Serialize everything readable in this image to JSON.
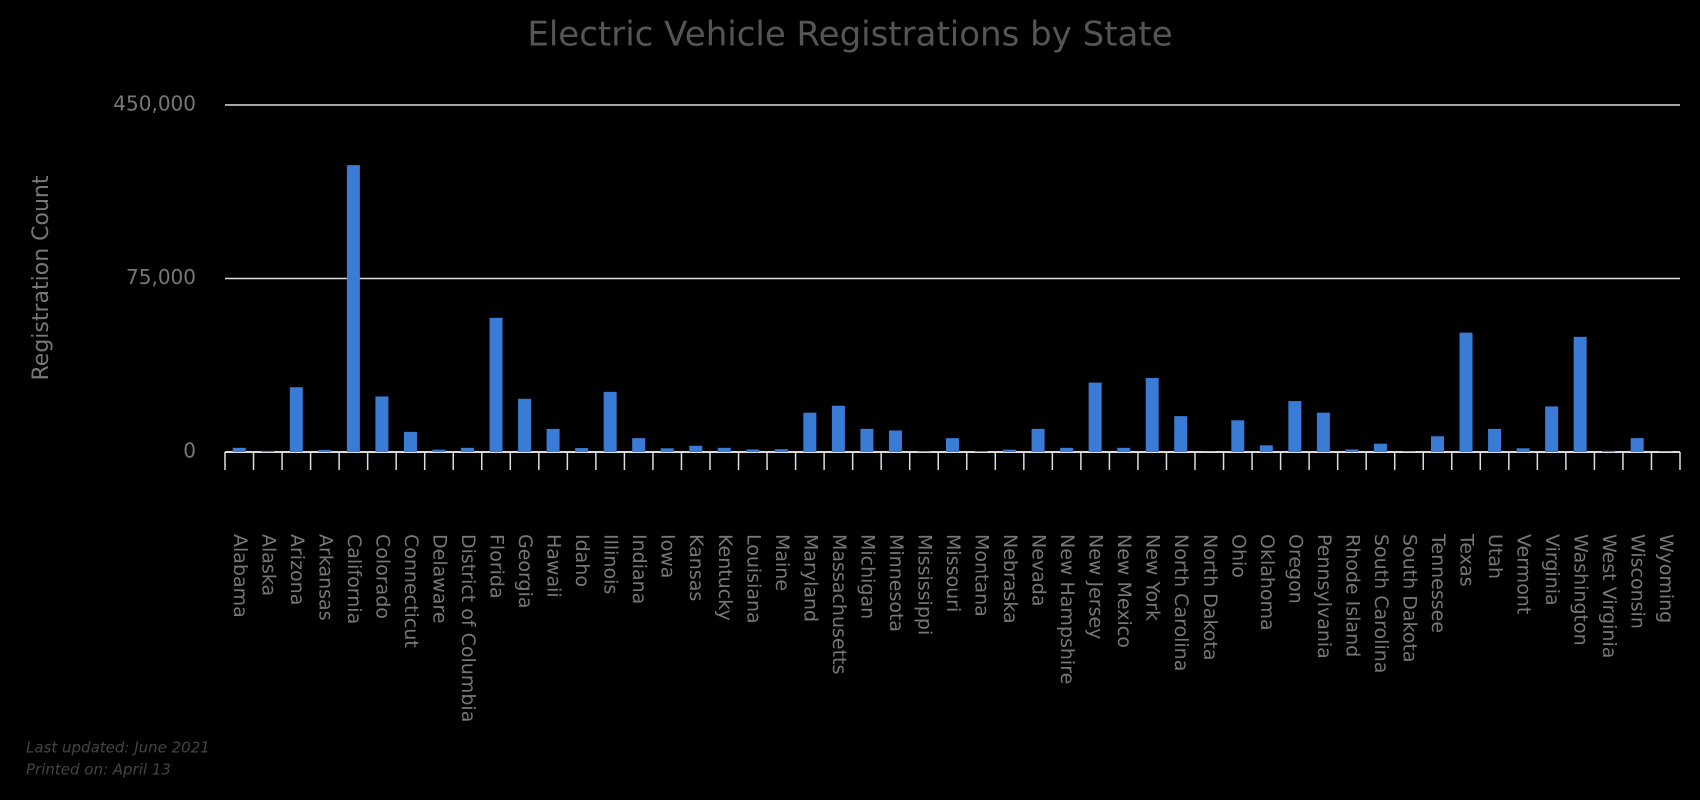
{
  "chart_data": {
    "type": "bar",
    "title": "Electric Vehicle Registrations by State",
    "y_label": "Registration Count",
    "categories": [
      "Alabama",
      "Alaska",
      "Arizona",
      "Arkansas",
      "California",
      "Colorado",
      "Connecticut",
      "Delaware",
      "District of Columbia",
      "Florida",
      "Georgia",
      "Hawaii",
      "Idaho",
      "Illinois",
      "Indiana",
      "Iowa",
      "Kansas",
      "Kentucky",
      "Louisiana",
      "Maine",
      "Maryland",
      "Massachusetts",
      "Michigan",
      "Minnesota",
      "Mississippi",
      "Missouri",
      "Montana",
      "Nebraska",
      "Nevada",
      "New Hampshire",
      "New Jersey",
      "New Mexico",
      "New York",
      "North Carolina",
      "North Dakota",
      "Ohio",
      "Oklahoma",
      "Oregon",
      "Pennsylvania",
      "Rhode Island",
      "South Carolina",
      "South Dakota",
      "Tennessee",
      "Texas",
      "Utah",
      "Vermont",
      "Virginia",
      "Washington",
      "West Virginia",
      "Wisconsin",
      "Wyoming"
    ],
    "values": [
      1800,
      500,
      28000,
      900,
      320000,
      24000,
      8700,
      1000,
      1800,
      58000,
      23000,
      10000,
      1700,
      26000,
      6000,
      1600,
      2700,
      1800,
      1100,
      1200,
      17000,
      20000,
      10000,
      9300,
      300,
      6000,
      400,
      1000,
      10000,
      1800,
      30000,
      1800,
      32000,
      15500,
      100,
      13700,
      2900,
      22000,
      17000,
      1100,
      3600,
      200,
      6800,
      51600,
      10000,
      1600,
      19700,
      49800,
      500,
      6000,
      200
    ],
    "color": "#3a7bd5",
    "ylim": [
      0,
      450000
    ],
    "yticks": [
      0,
      {
        "value": 75000,
        "label": "75,000"
      },
      {
        "value": 450000,
        "label": "450,000"
      }
    ],
    "y_scale": "piecewise",
    "grid": true,
    "footnotes": [
      "Last updated: June 2021",
      "Printed on: April 13"
    ]
  }
}
